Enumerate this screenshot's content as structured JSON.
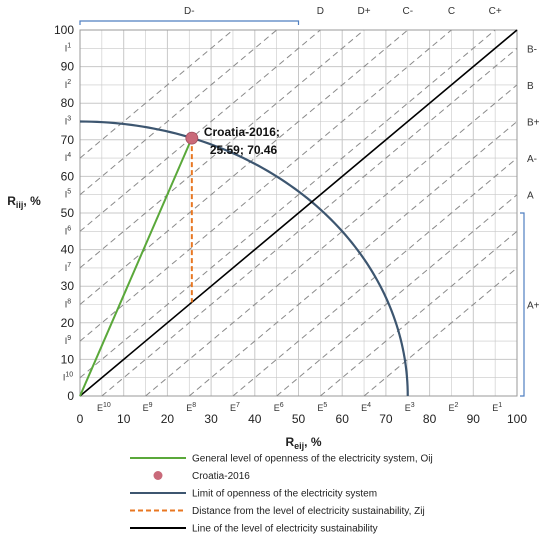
{
  "chart_data": {
    "type": "line",
    "xlabel_main": "R",
    "xlabel_sub": "eij",
    "xlabel_unit": ", %",
    "ylabel_main": "R",
    "ylabel_sub": "iij",
    "ylabel_unit": ", %",
    "xlim": [
      0,
      100
    ],
    "ylim": [
      0,
      100
    ],
    "x_ticks": [
      0,
      10,
      20,
      30,
      40,
      50,
      60,
      70,
      80,
      90,
      100
    ],
    "y_ticks": [
      0,
      10,
      20,
      30,
      40,
      50,
      60,
      70,
      80,
      90,
      100
    ],
    "grid": true,
    "top_grades": [
      {
        "label": "D-",
        "x": 25
      },
      {
        "label": "D",
        "x": 55
      },
      {
        "label": "D+",
        "x": 65
      },
      {
        "label": "C-",
        "x": 75
      },
      {
        "label": "C",
        "x": 85
      },
      {
        "label": "C+",
        "x": 95
      }
    ],
    "right_grades": [
      {
        "label": "B-",
        "y": 95
      },
      {
        "label": "B",
        "y": 85
      },
      {
        "label": "B+",
        "y": 75
      },
      {
        "label": "A-",
        "y": 65
      },
      {
        "label": "A",
        "y": 55
      },
      {
        "label": "A+",
        "y": 25
      }
    ],
    "i_labels": [
      {
        "base": "I",
        "sup": "1",
        "y": 95
      },
      {
        "base": "I",
        "sup": "2",
        "y": 85
      },
      {
        "base": "I",
        "sup": "3",
        "y": 75
      },
      {
        "base": "I",
        "sup": "4",
        "y": 65
      },
      {
        "base": "I",
        "sup": "5",
        "y": 55
      },
      {
        "base": "I",
        "sup": "6",
        "y": 45
      },
      {
        "base": "I",
        "sup": "7",
        "y": 35
      },
      {
        "base": "I",
        "sup": "8",
        "y": 25
      },
      {
        "base": "I",
        "sup": "9",
        "y": 15
      },
      {
        "base": "I",
        "sup": "10",
        "y": 5
      }
    ],
    "e_labels": [
      {
        "base": "E",
        "sup": "10",
        "x": 5
      },
      {
        "base": "E",
        "sup": "9",
        "x": 15
      },
      {
        "base": "E",
        "sup": "8",
        "x": 25
      },
      {
        "base": "E",
        "sup": "7",
        "x": 35
      },
      {
        "base": "E",
        "sup": "6",
        "x": 45
      },
      {
        "base": "E",
        "sup": "5",
        "x": 55
      },
      {
        "base": "E",
        "sup": "4",
        "x": 65
      },
      {
        "base": "E",
        "sup": "3",
        "x": 75
      },
      {
        "base": "E",
        "sup": "2",
        "x": 85
      },
      {
        "base": "E",
        "sup": "1",
        "x": 95
      }
    ],
    "diagonal_offsets": [
      -65,
      -55,
      -45,
      -35,
      -25,
      -15,
      -5,
      5,
      15,
      25,
      35,
      45,
      55,
      65
    ],
    "arc_radius": 75,
    "point": {
      "name": "Croatia-2016",
      "x": 25.59,
      "y": 70.46
    },
    "annotation_line1": "Croatia-2016;",
    "annotation_line2": "25.59; 70.46",
    "distance_line_bottom_y": 25.59,
    "colors": {
      "openness": "#5aa83a",
      "point": "#c96a7a",
      "limit": "#3d5670",
      "distance": "#e87722",
      "sustainability": "#000000",
      "bracket": "#4f7fc0",
      "grid": "#c8c8c8",
      "diag": "#8a8a8a"
    },
    "legend": [
      {
        "key": "openness",
        "kind": "line",
        "label": "General level of openness of the electricity system, Oij"
      },
      {
        "key": "point",
        "kind": "marker",
        "label": "Croatia-2016"
      },
      {
        "key": "limit",
        "kind": "line",
        "label": "Limit of openness of the electricity system"
      },
      {
        "key": "distance",
        "kind": "dashed",
        "label": "Distance from the level of electricity sustainability, Zij"
      },
      {
        "key": "sustainability",
        "kind": "line",
        "label": "Line of the level of electricity sustainability"
      }
    ]
  }
}
